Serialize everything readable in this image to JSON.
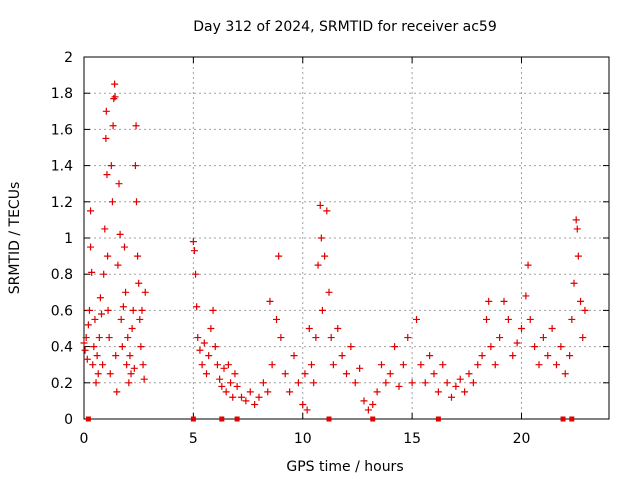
{
  "chart_data": {
    "type": "scatter",
    "title": "Day 312 of 2024, SRMTID for receiver ac59",
    "xlabel": "GPS time / hours",
    "ylabel": "SRMTID / TECUs",
    "xlim": [
      0,
      24
    ],
    "ylim": [
      0,
      2
    ],
    "x_ticks": [
      0,
      5,
      10,
      15,
      20
    ],
    "x_tick_labels": [
      "0",
      "5",
      "10",
      "15",
      "20"
    ],
    "y_ticks": [
      0,
      0.2,
      0.4,
      0.6,
      0.8,
      1,
      1.2,
      1.4,
      1.6,
      1.8,
      2
    ],
    "y_tick_labels": [
      "0",
      "0.2",
      "0.4",
      "0.6",
      "0.8",
      "1",
      "1.2",
      "1.4",
      "1.6",
      "1.8",
      "2"
    ],
    "grid": true,
    "legend": "none",
    "marker": "plus",
    "color": "#e00000",
    "series": [
      {
        "name": "SRMTID",
        "points": [
          [
            0.0,
            0.42
          ],
          [
            0.05,
            0.38
          ],
          [
            0.1,
            0.45
          ],
          [
            0.15,
            0.33
          ],
          [
            0.2,
            0.52
          ],
          [
            0.25,
            0.6
          ],
          [
            0.3,
            1.15
          ],
          [
            0.3,
            0.95
          ],
          [
            0.35,
            0.81
          ],
          [
            0.4,
            0.3
          ],
          [
            0.45,
            0.4
          ],
          [
            0.5,
            0.55
          ],
          [
            0.55,
            0.2
          ],
          [
            0.6,
            0.35
          ],
          [
            0.65,
            0.25
          ],
          [
            0.7,
            0.45
          ],
          [
            0.75,
            0.67
          ],
          [
            0.8,
            0.58
          ],
          [
            0.85,
            0.3
          ],
          [
            0.9,
            0.8
          ],
          [
            0.95,
            1.05
          ],
          [
            1.0,
            1.55
          ],
          [
            1.02,
            1.7
          ],
          [
            1.05,
            1.35
          ],
          [
            1.08,
            0.9
          ],
          [
            1.1,
            0.6
          ],
          [
            1.15,
            0.45
          ],
          [
            1.2,
            0.25
          ],
          [
            1.25,
            1.4
          ],
          [
            1.3,
            1.2
          ],
          [
            1.33,
            1.62
          ],
          [
            1.36,
            1.77
          ],
          [
            1.4,
            1.85
          ],
          [
            1.42,
            1.78
          ],
          [
            1.45,
            0.35
          ],
          [
            1.5,
            0.15
          ],
          [
            1.55,
            0.85
          ],
          [
            1.6,
            1.3
          ],
          [
            1.65,
            1.02
          ],
          [
            1.7,
            0.55
          ],
          [
            1.75,
            0.4
          ],
          [
            1.8,
            0.62
          ],
          [
            1.85,
            0.95
          ],
          [
            1.9,
            0.7
          ],
          [
            1.95,
            0.3
          ],
          [
            2.0,
            0.45
          ],
          [
            2.05,
            0.2
          ],
          [
            2.1,
            0.35
          ],
          [
            2.15,
            0.25
          ],
          [
            2.2,
            0.5
          ],
          [
            2.25,
            0.6
          ],
          [
            2.3,
            0.28
          ],
          [
            2.35,
            1.4
          ],
          [
            2.38,
            1.62
          ],
          [
            2.4,
            1.2
          ],
          [
            2.45,
            0.9
          ],
          [
            2.5,
            0.75
          ],
          [
            2.55,
            0.55
          ],
          [
            2.6,
            0.4
          ],
          [
            2.65,
            0.6
          ],
          [
            2.7,
            0.3
          ],
          [
            2.75,
            0.22
          ],
          [
            2.8,
            0.7
          ],
          [
            5.0,
            0.98
          ],
          [
            5.05,
            0.93
          ],
          [
            5.1,
            0.8
          ],
          [
            5.15,
            0.62
          ],
          [
            5.2,
            0.45
          ],
          [
            5.3,
            0.38
          ],
          [
            5.4,
            0.3
          ],
          [
            5.5,
            0.42
          ],
          [
            5.6,
            0.25
          ],
          [
            5.7,
            0.35
          ],
          [
            5.8,
            0.5
          ],
          [
            5.9,
            0.6
          ],
          [
            6.0,
            0.4
          ],
          [
            6.1,
            0.3
          ],
          [
            6.2,
            0.22
          ],
          [
            6.3,
            0.18
          ],
          [
            6.4,
            0.28
          ],
          [
            6.5,
            0.15
          ],
          [
            6.6,
            0.3
          ],
          [
            6.7,
            0.2
          ],
          [
            6.8,
            0.12
          ],
          [
            6.9,
            0.25
          ],
          [
            7.0,
            0.18
          ],
          [
            7.2,
            0.12
          ],
          [
            7.4,
            0.1
          ],
          [
            7.6,
            0.15
          ],
          [
            7.8,
            0.08
          ],
          [
            8.0,
            0.12
          ],
          [
            8.2,
            0.2
          ],
          [
            8.4,
            0.15
          ],
          [
            8.5,
            0.65
          ],
          [
            8.6,
            0.3
          ],
          [
            8.8,
            0.55
          ],
          [
            8.9,
            0.9
          ],
          [
            9.0,
            0.45
          ],
          [
            9.2,
            0.25
          ],
          [
            9.4,
            0.15
          ],
          [
            9.6,
            0.35
          ],
          [
            9.8,
            0.2
          ],
          [
            10.0,
            0.08
          ],
          [
            10.1,
            0.25
          ],
          [
            10.2,
            0.05
          ],
          [
            10.3,
            0.5
          ],
          [
            10.4,
            0.3
          ],
          [
            10.5,
            0.2
          ],
          [
            10.6,
            0.45
          ],
          [
            10.7,
            0.85
          ],
          [
            10.8,
            1.18
          ],
          [
            10.85,
            1.0
          ],
          [
            10.9,
            0.6
          ],
          [
            11.0,
            0.9
          ],
          [
            11.1,
            1.15
          ],
          [
            11.2,
            0.7
          ],
          [
            11.3,
            0.45
          ],
          [
            11.4,
            0.3
          ],
          [
            11.6,
            0.5
          ],
          [
            11.8,
            0.35
          ],
          [
            12.0,
            0.25
          ],
          [
            12.2,
            0.4
          ],
          [
            12.4,
            0.2
          ],
          [
            12.6,
            0.28
          ],
          [
            12.8,
            0.1
          ],
          [
            13.0,
            0.05
          ],
          [
            13.2,
            0.08
          ],
          [
            13.4,
            0.15
          ],
          [
            13.6,
            0.3
          ],
          [
            13.8,
            0.2
          ],
          [
            14.0,
            0.25
          ],
          [
            14.2,
            0.4
          ],
          [
            14.4,
            0.18
          ],
          [
            14.6,
            0.3
          ],
          [
            14.8,
            0.45
          ],
          [
            15.0,
            0.2
          ],
          [
            15.2,
            0.55
          ],
          [
            15.4,
            0.3
          ],
          [
            15.6,
            0.2
          ],
          [
            15.8,
            0.35
          ],
          [
            16.0,
            0.25
          ],
          [
            16.2,
            0.15
          ],
          [
            16.4,
            0.3
          ],
          [
            16.6,
            0.2
          ],
          [
            16.8,
            0.12
          ],
          [
            17.0,
            0.18
          ],
          [
            17.2,
            0.22
          ],
          [
            17.4,
            0.15
          ],
          [
            17.6,
            0.25
          ],
          [
            17.8,
            0.2
          ],
          [
            18.0,
            0.3
          ],
          [
            18.2,
            0.35
          ],
          [
            18.4,
            0.55
          ],
          [
            18.5,
            0.65
          ],
          [
            18.6,
            0.4
          ],
          [
            18.8,
            0.3
          ],
          [
            19.0,
            0.45
          ],
          [
            19.2,
            0.65
          ],
          [
            19.4,
            0.55
          ],
          [
            19.6,
            0.35
          ],
          [
            19.8,
            0.42
          ],
          [
            20.0,
            0.5
          ],
          [
            20.2,
            0.68
          ],
          [
            20.3,
            0.85
          ],
          [
            20.4,
            0.55
          ],
          [
            20.6,
            0.4
          ],
          [
            20.8,
            0.3
          ],
          [
            21.0,
            0.45
          ],
          [
            21.2,
            0.35
          ],
          [
            21.4,
            0.5
          ],
          [
            21.6,
            0.3
          ],
          [
            21.8,
            0.4
          ],
          [
            22.0,
            0.25
          ],
          [
            22.2,
            0.35
          ],
          [
            22.3,
            0.55
          ],
          [
            22.4,
            0.75
          ],
          [
            22.5,
            1.1
          ],
          [
            22.55,
            1.05
          ],
          [
            22.6,
            0.9
          ],
          [
            22.7,
            0.65
          ],
          [
            22.8,
            0.45
          ],
          [
            22.9,
            0.6
          ]
        ]
      }
    ],
    "gaps_x": [
      0.2,
      5.0,
      6.3,
      7.0,
      11.2,
      13.2,
      16.2,
      21.9,
      22.3
    ]
  }
}
